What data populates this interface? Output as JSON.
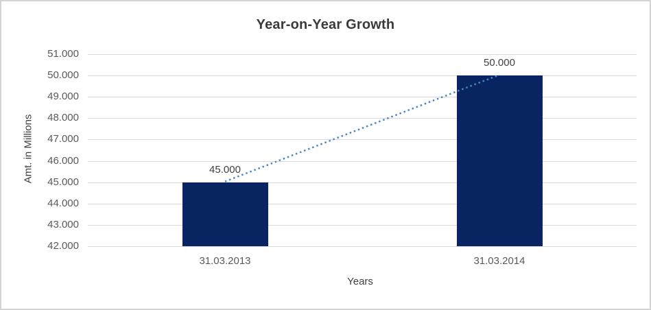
{
  "chart": {
    "title": "Year-on-Year Growth",
    "y_axis_title": "Amt. in Millions",
    "x_axis_title": "Years"
  },
  "chart_data": {
    "type": "bar",
    "title": "Year-on-Year Growth",
    "xlabel": "Years",
    "ylabel": "Amt. in Millions",
    "categories": [
      "31.03.2013",
      "31.03.2014"
    ],
    "series": [
      {
        "name": "Amt. in Millions",
        "values": [
          45000,
          50000
        ]
      }
    ],
    "data_labels": [
      "45.000",
      "50.000"
    ],
    "y_ticks": [
      {
        "value": 51000,
        "label": "51.000"
      },
      {
        "value": 50000,
        "label": "50.000"
      },
      {
        "value": 49000,
        "label": "49.000"
      },
      {
        "value": 48000,
        "label": "48.000"
      },
      {
        "value": 47000,
        "label": "47.000"
      },
      {
        "value": 46000,
        "label": "46.000"
      },
      {
        "value": 45000,
        "label": "45.000"
      },
      {
        "value": 44000,
        "label": "44.000"
      },
      {
        "value": 43000,
        "label": "43.000"
      },
      {
        "value": 42000,
        "label": "42.000"
      }
    ],
    "ylim": [
      42000,
      51000
    ],
    "grid": true,
    "legend": "none",
    "trendline": {
      "type": "linear",
      "style": "dotted"
    },
    "colors": {
      "bar": "#082561",
      "trendline": "#4a86c8",
      "gridline": "#d9d9d9",
      "title_text": "#3a3a3a",
      "axis_title_text": "#3f3f3f",
      "tick_text": "#595959",
      "data_label_text": "#404040",
      "frame_border": "#d4d4d4"
    }
  }
}
